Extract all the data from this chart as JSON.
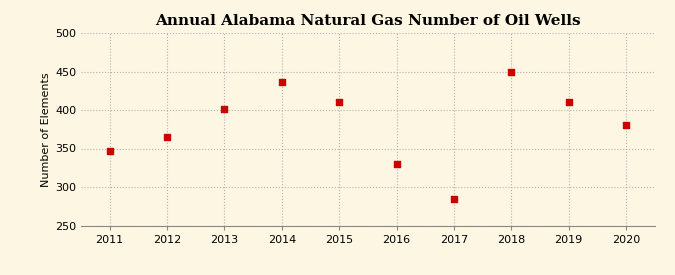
{
  "title": "Annual Alabama Natural Gas Number of Oil Wells",
  "ylabel": "Number of Elements",
  "years": [
    2011,
    2012,
    2013,
    2014,
    2015,
    2016,
    2017,
    2018,
    2019,
    2020
  ],
  "values": [
    347,
    365,
    401,
    437,
    410,
    330,
    285,
    450,
    410,
    381
  ],
  "ylim": [
    250,
    500
  ],
  "yticks": [
    250,
    300,
    350,
    400,
    450,
    500
  ],
  "xlim": [
    2010.5,
    2020.5
  ],
  "marker_color": "#cc0000",
  "marker_size": 18,
  "background_color": "#fdf6e3",
  "grid_color": "#aaaaaa",
  "title_fontsize": 11,
  "label_fontsize": 8,
  "tick_fontsize": 8,
  "source_fontsize": 7,
  "source_color": "#888888"
}
